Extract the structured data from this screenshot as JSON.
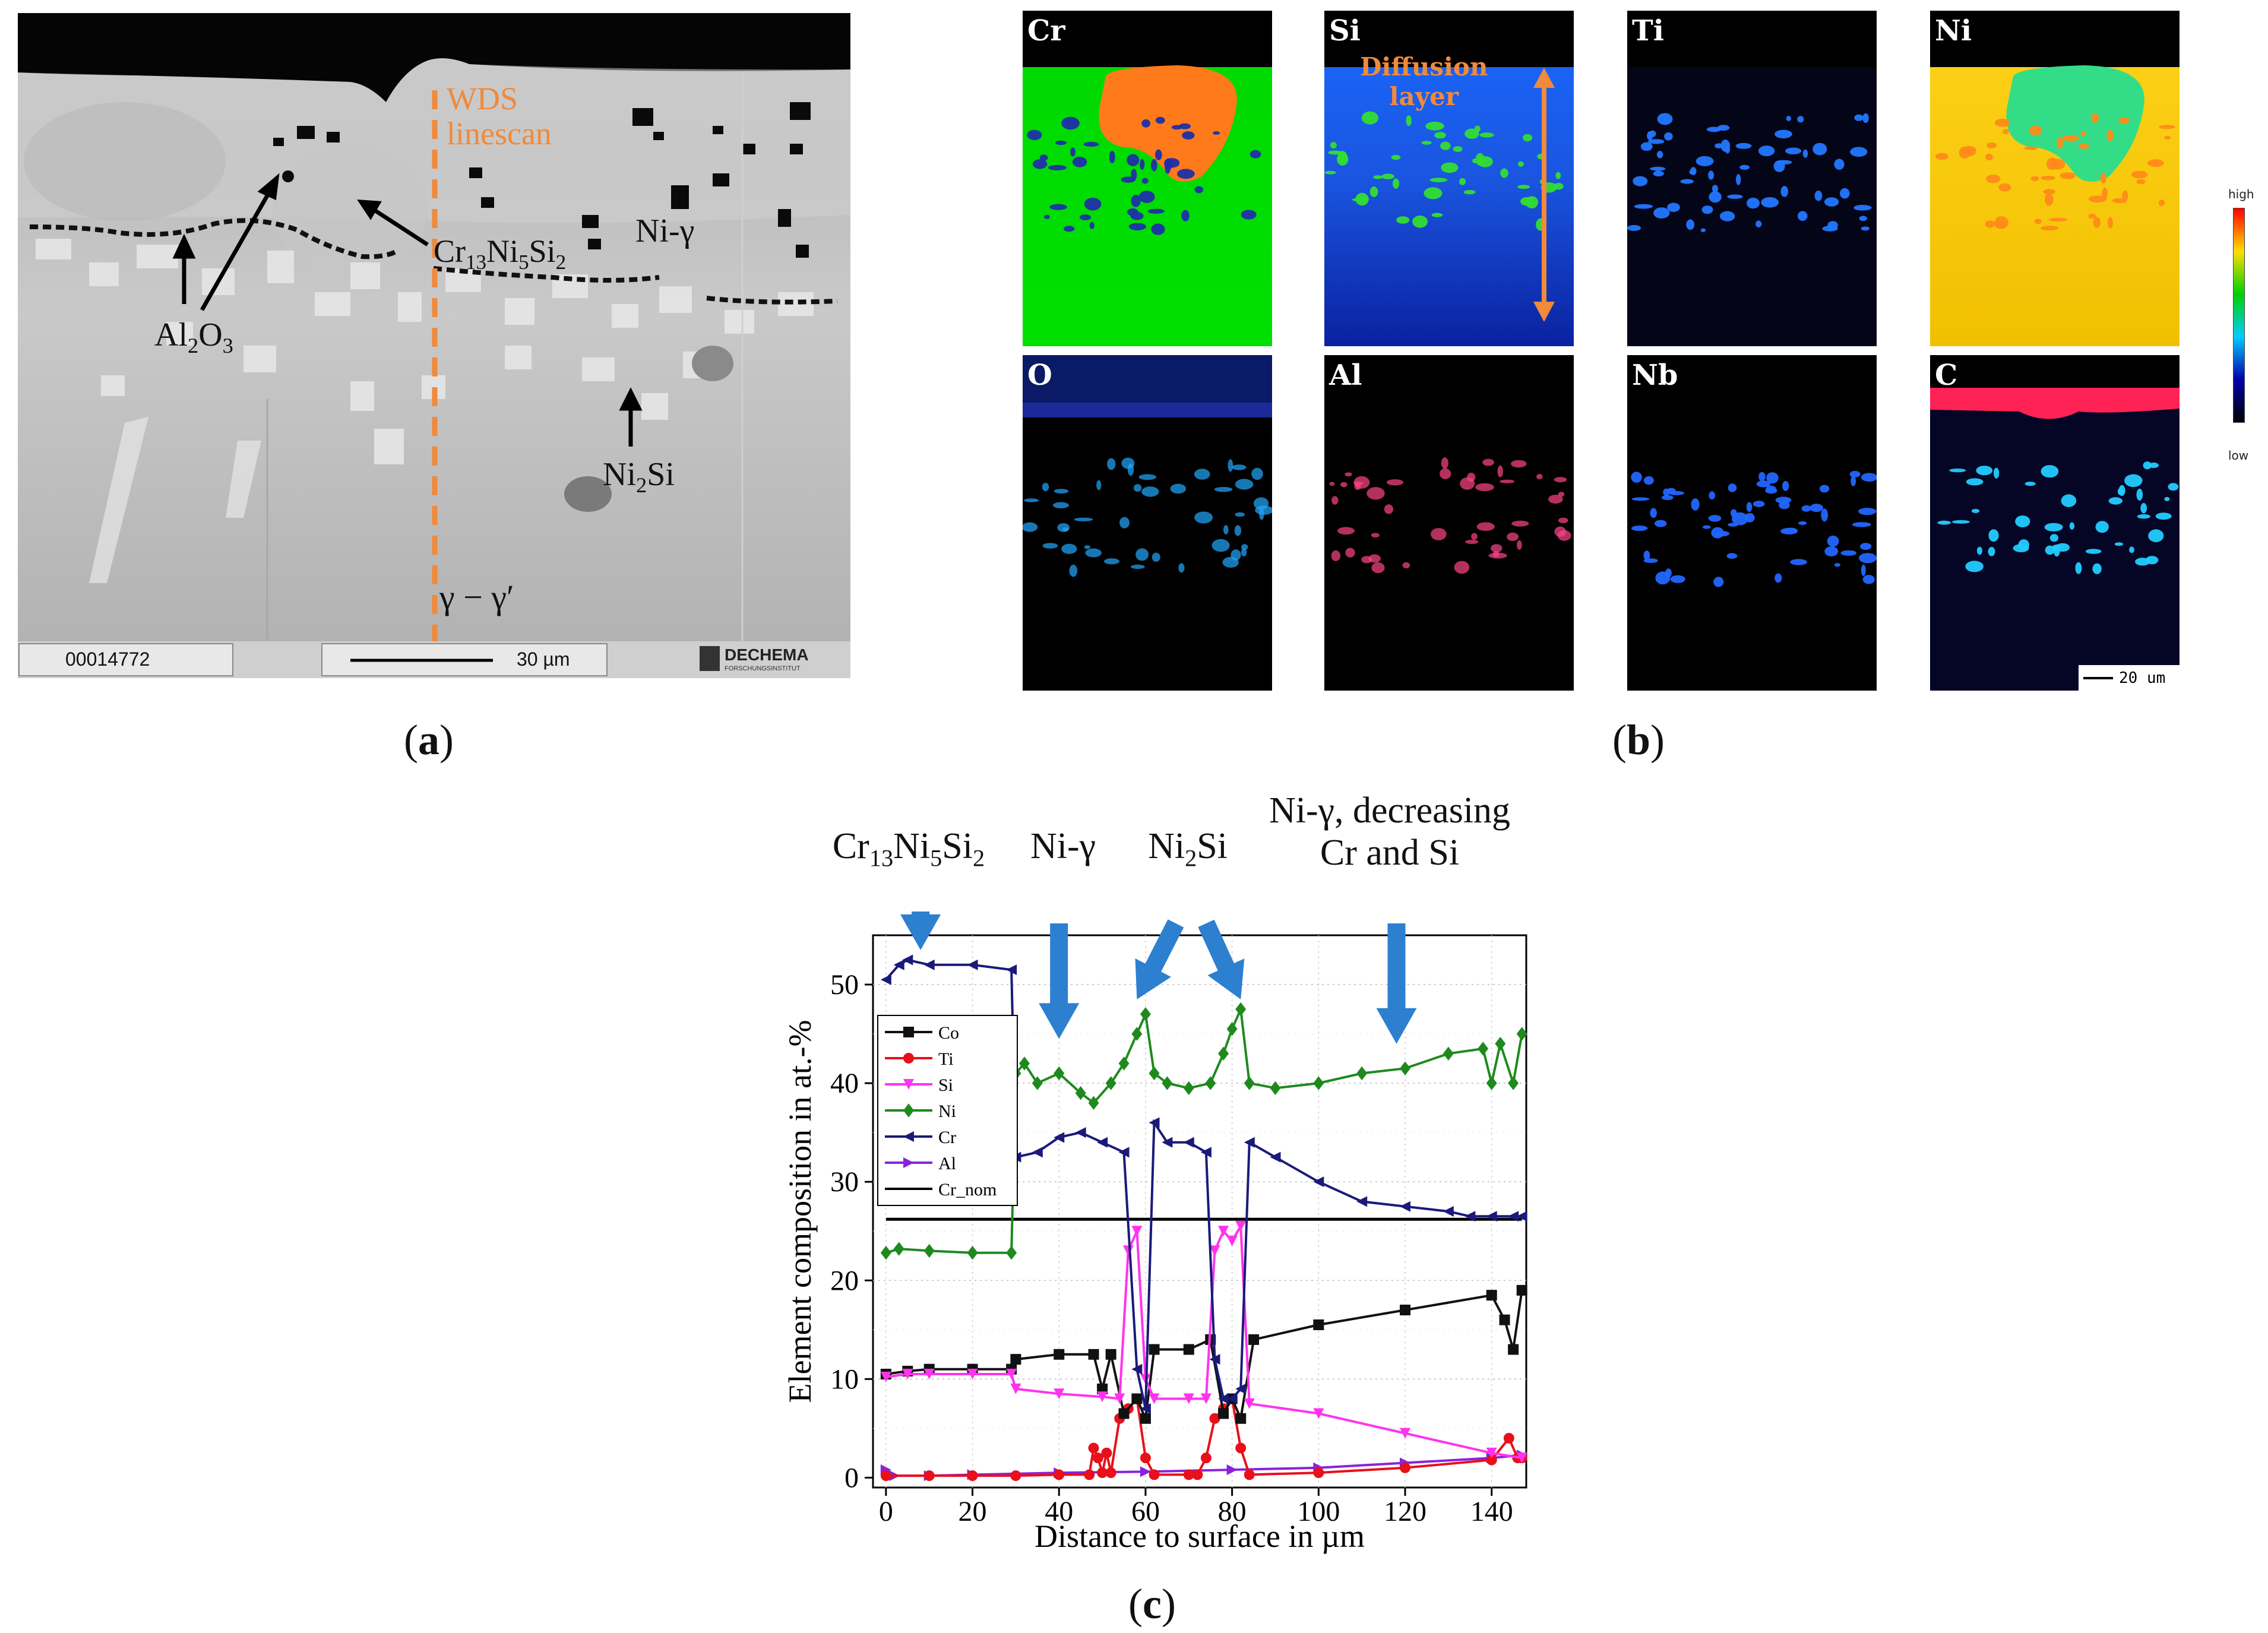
{
  "panels": {
    "a": {
      "label": "(a)",
      "sample_id": "00014772",
      "scale_bar": "30 µm",
      "logo_text": "DECHEMA",
      "logo_subtext": "FORSCHUNGSINSTITUT",
      "wds_label_line1": "WDS",
      "wds_label_line2": "linescan",
      "phase_cr13": "Cr13Ni5Si2",
      "phase_ni_gamma": "Ni-γ",
      "phase_al2o3": "Al2O3",
      "phase_ni2si": "Ni2Si",
      "phase_gamma": "γ − γ′"
    },
    "b": {
      "label": "(b)",
      "tiles": [
        "Cr",
        "Si",
        "Ti",
        "Ni",
        "O",
        "Al",
        "Nb",
        "C"
      ],
      "diffusion_line1": "Diffusion",
      "diffusion_line2": "layer",
      "colorbar_high": "high",
      "colorbar_low": "low",
      "scale_bar": "20 um"
    },
    "c": {
      "label": "(c)",
      "annotations": {
        "cr13": "Cr13Ni5Si2",
        "ni_gamma": "Ni-γ",
        "ni2si": "Ni2Si",
        "decreasing_line1": "Ni-γ, decreasing",
        "decreasing_line2": "Cr and Si"
      }
    }
  },
  "colors": {
    "Co": "#111111",
    "Ti": "#e8101a",
    "Si": "#ff33ee",
    "Ni": "#1e8a1e",
    "Cr": "#1a1a7a",
    "Al": "#8a22dd",
    "Cr_nom": "#000000",
    "arrow": "#2d7fd0",
    "wds": "#f08a3c"
  },
  "chart_data": {
    "type": "line",
    "xlabel": "Distance to surface in µm",
    "ylabel": "Element composition in at.-%",
    "xlim": [
      -3,
      148
    ],
    "ylim": [
      -1,
      55
    ],
    "xticks": [
      0,
      20,
      40,
      60,
      80,
      100,
      120,
      140
    ],
    "yticks": [
      0,
      10,
      20,
      30,
      40,
      50
    ],
    "legend": "top-left",
    "series": [
      {
        "name": "Co",
        "x": [
          0,
          5,
          10,
          20,
          29,
          30,
          40,
          48,
          50,
          52,
          55,
          58,
          60,
          62,
          70,
          75,
          78,
          80,
          82,
          85,
          100,
          120,
          140,
          143,
          145,
          147
        ],
        "values": [
          10.5,
          10.8,
          11,
          11,
          11,
          12,
          12.5,
          12.5,
          9,
          12.5,
          6.5,
          8,
          6,
          13,
          13,
          14,
          6.5,
          8,
          6,
          14,
          15.5,
          17,
          18.5,
          16,
          13,
          19
        ]
      },
      {
        "name": "Ti",
        "x": [
          0,
          10,
          20,
          30,
          40,
          47,
          48,
          49,
          50,
          51,
          52,
          54,
          56,
          58,
          60,
          62,
          70,
          72,
          74,
          76,
          78,
          80,
          82,
          84,
          100,
          120,
          140,
          144,
          146,
          147
        ],
        "values": [
          0.2,
          0.2,
          0.2,
          0.2,
          0.3,
          0.3,
          3,
          2,
          0.5,
          2.5,
          0.5,
          6,
          7,
          8,
          2,
          0.3,
          0.3,
          0.3,
          2,
          6,
          7,
          8,
          3,
          0.3,
          0.5,
          1,
          1.8,
          4,
          2,
          2
        ]
      },
      {
        "name": "Si",
        "x": [
          0,
          5,
          10,
          20,
          29,
          30,
          40,
          50,
          54,
          56,
          58,
          60,
          62,
          70,
          74,
          76,
          78,
          80,
          82,
          84,
          100,
          120,
          140,
          147
        ],
        "values": [
          10.2,
          10.5,
          10.5,
          10.5,
          10.5,
          9,
          8.5,
          8.2,
          8,
          23,
          25,
          10,
          8,
          8,
          8,
          23,
          25,
          24,
          25.5,
          7.5,
          6.5,
          4.5,
          2.5,
          2
        ]
      },
      {
        "name": "Ni",
        "x": [
          0,
          3,
          10,
          20,
          29,
          30,
          32,
          35,
          40,
          45,
          48,
          52,
          55,
          58,
          60,
          62,
          65,
          70,
          75,
          78,
          80,
          82,
          84,
          90,
          100,
          110,
          120,
          130,
          138,
          140,
          142,
          145,
          147
        ],
        "values": [
          22.8,
          23.2,
          23,
          22.8,
          22.8,
          41,
          42,
          40,
          41,
          39,
          38,
          40,
          42,
          45,
          47,
          41,
          40,
          39.5,
          40,
          43,
          45.5,
          47.5,
          40,
          39.5,
          40,
          41,
          41.5,
          43,
          43.5,
          40,
          44,
          40,
          45
        ]
      },
      {
        "name": "Cr",
        "x": [
          0,
          3,
          5,
          10,
          20,
          29,
          30,
          35,
          40,
          45,
          50,
          55,
          58,
          60,
          62,
          65,
          70,
          74,
          76,
          78,
          80,
          82,
          84,
          90,
          100,
          110,
          120,
          130,
          135,
          140,
          145,
          147
        ],
        "values": [
          50.5,
          52,
          52.5,
          52,
          52,
          51.5,
          32.5,
          33,
          34.5,
          35,
          34,
          33,
          11,
          7,
          36,
          34,
          34,
          33,
          12,
          8,
          8,
          9,
          34,
          32.5,
          30,
          28,
          27.5,
          27,
          26.5,
          26.5,
          26.5,
          26.5
        ]
      },
      {
        "name": "Al",
        "x": [
          0,
          2,
          10,
          20,
          40,
          60,
          80,
          100,
          120,
          140,
          147
        ],
        "values": [
          0.8,
          0.2,
          0.2,
          0.3,
          0.5,
          0.6,
          0.8,
          1,
          1.5,
          2,
          2.3
        ]
      },
      {
        "name": "Cr_nom",
        "x": [
          0,
          147
        ],
        "values": [
          26.2,
          26.2
        ]
      }
    ]
  }
}
